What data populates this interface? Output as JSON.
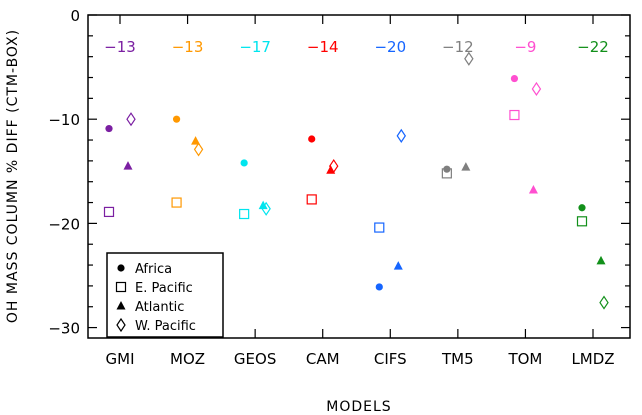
{
  "chart_data": {
    "type": "scatter",
    "title": "",
    "xlabel": "MODELS",
    "ylabel": "OH MASS COLUMN % DIFF (CTM-BOX)",
    "ylim": [
      -31,
      0
    ],
    "y_ticks": [
      0,
      -10,
      -20,
      -30
    ],
    "categories": [
      "GMI",
      "MOZ",
      "GEOS",
      "CAM",
      "CIFS",
      "TM5",
      "TOM",
      "LMDZ"
    ],
    "model_colors": [
      "#7b1fa2",
      "#ff9800",
      "#00e5ee",
      "#ff0000",
      "#1565ff",
      "#7f7f7f",
      "#ff4fd0",
      "#12901a"
    ],
    "annotations": [
      "−13",
      "−13",
      "−17",
      "−14",
      "−20",
      "−12",
      "−9",
      "−22"
    ],
    "series": [
      {
        "name": "Africa",
        "marker": "filled-circle",
        "values": [
          -10.9,
          -10.0,
          -14.2,
          -11.9,
          -26.1,
          -14.8,
          -6.1,
          -18.5
        ]
      },
      {
        "name": "E. Pacific",
        "marker": "open-square",
        "values": [
          -18.9,
          -18.0,
          -19.1,
          -17.7,
          -20.4,
          -15.2,
          -9.6,
          -19.8
        ]
      },
      {
        "name": "Atlantic",
        "marker": "filled-triangle",
        "values": [
          -14.5,
          -12.1,
          -18.3,
          -14.9,
          -24.1,
          -14.6,
          -16.8,
          -23.6
        ]
      },
      {
        "name": "W. Pacific",
        "marker": "open-diamond",
        "values": [
          -10.0,
          -12.9,
          -18.6,
          -14.5,
          -11.6,
          -4.2,
          -7.1,
          -27.6
        ]
      }
    ],
    "legend": {
      "position": "bottom-left",
      "entries": [
        "Africa",
        "E. Pacific",
        "Atlantic",
        "W. Pacific"
      ]
    }
  }
}
